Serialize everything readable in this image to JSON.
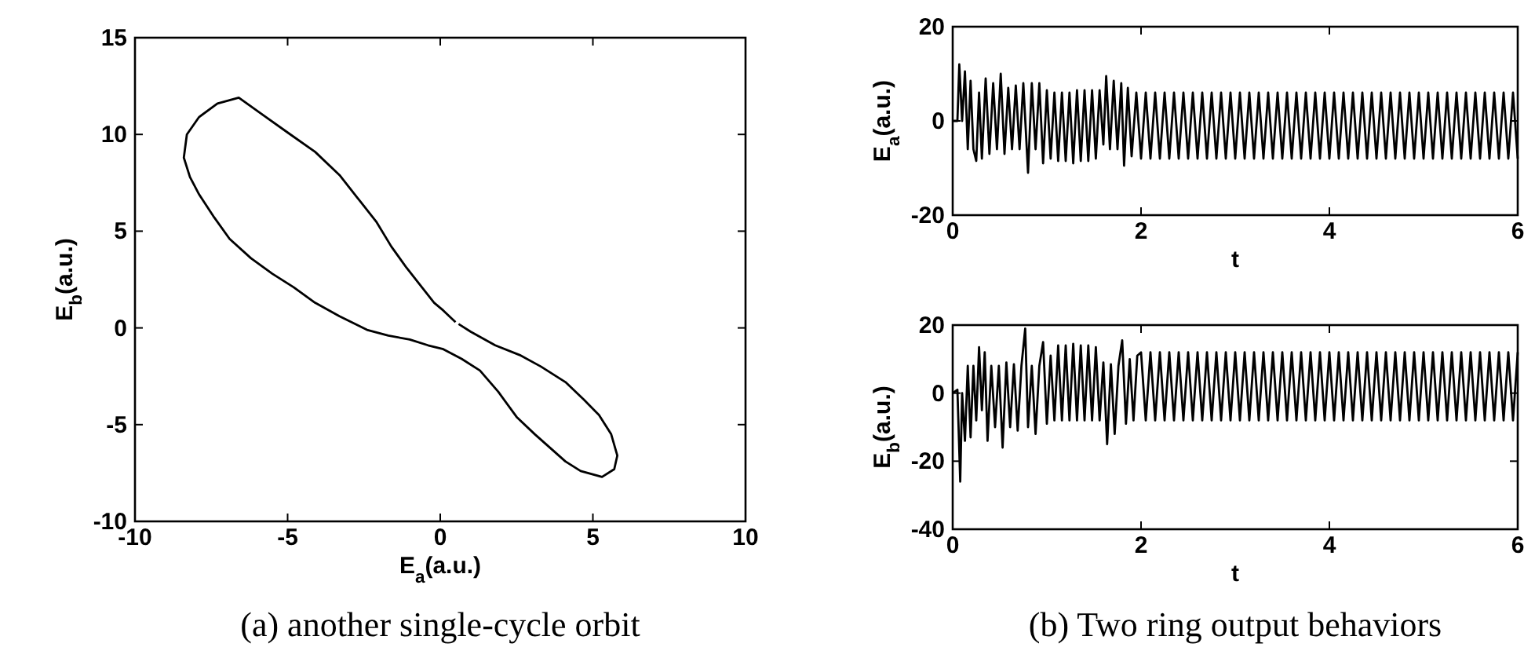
{
  "chart_data": [
    {
      "type": "line",
      "xlabel": "E$_{a}$(a.u.)",
      "ylabel": "E$_{b}$(a.u.)",
      "xlim": [
        -10,
        10
      ],
      "ylim": [
        -10,
        15
      ],
      "xticks": [
        -10,
        -5,
        0,
        5,
        10
      ],
      "yticks": [
        -10,
        -5,
        0,
        5,
        10,
        15
      ],
      "annotations": [
        "(a) another single-cycle orbit"
      ],
      "series": [
        {
          "color": "#000000",
          "x": [
            0.5,
            0.1,
            -0.2,
            -0.6,
            -1.1,
            -1.6,
            -2.1,
            -2.7,
            -3.3,
            -4.1,
            -5.0,
            -5.8,
            -6.6,
            -7.3,
            -7.9,
            -8.3,
            -8.4,
            -8.2,
            -7.9,
            -7.4,
            -6.9,
            -6.2,
            -5.5,
            -4.8,
            -4.1,
            -3.3,
            -2.4,
            -1.7,
            -1.0,
            -0.4,
            0.1,
            0.7,
            1.3,
            1.9,
            2.5,
            3.1,
            3.6,
            4.1,
            4.6,
            5.3,
            5.7,
            5.8,
            5.6,
            5.2,
            4.7,
            4.1,
            3.3,
            2.6,
            1.8,
            1.0,
            0.6
          ],
          "values": [
            0.3,
            0.9,
            1.3,
            2.1,
            3.1,
            4.2,
            5.5,
            6.7,
            7.9,
            9.1,
            10.1,
            11.0,
            11.9,
            11.6,
            10.9,
            10.0,
            8.8,
            7.8,
            6.9,
            5.7,
            4.6,
            3.6,
            2.8,
            2.1,
            1.3,
            0.6,
            -0.1,
            -0.4,
            -0.6,
            -0.9,
            -1.1,
            -1.6,
            -2.2,
            -3.3,
            -4.6,
            -5.5,
            -6.2,
            -6.9,
            -7.4,
            -7.7,
            -7.3,
            -6.6,
            -5.5,
            -4.5,
            -3.7,
            -2.8,
            -2.0,
            -1.4,
            -0.9,
            -0.2,
            0.2
          ]
        }
      ]
    },
    {
      "type": "line",
      "xlabel": "t",
      "ylabel": "E$_{a}$(a.u.)",
      "xlim": [
        0,
        6
      ],
      "ylim": [
        -20,
        20
      ],
      "xticks": [
        0,
        2,
        4,
        6
      ],
      "yticks": [
        -20,
        0,
        20
      ],
      "series": [
        {
          "color": "#000000",
          "x": [
            0,
            0.05,
            0.07,
            0.1,
            0.13,
            0.16,
            0.19,
            0.22,
            0.25,
            0.28,
            0.31,
            0.35,
            0.39,
            0.43,
            0.47,
            0.51,
            0.55,
            0.59,
            0.63,
            0.67,
            0.71,
            0.75,
            0.8,
            0.84,
            0.88,
            0.92,
            0.96,
            1.0,
            1.04,
            1.08,
            1.12,
            1.16,
            1.2,
            1.24,
            1.28,
            1.32,
            1.36,
            1.4,
            1.44,
            1.48,
            1.52,
            1.56,
            1.6,
            1.63,
            1.67,
            1.71,
            1.75,
            1.79,
            1.82,
            1.86,
            1.9,
            1.95,
            2,
            2.05,
            2.1,
            2.15,
            2.2,
            2.25,
            2.3,
            2.35,
            2.4,
            2.45,
            2.5,
            2.55,
            2.6,
            2.65,
            2.7,
            2.75,
            2.8,
            2.85,
            2.9,
            2.95,
            3,
            3.05,
            3.1,
            3.15,
            3.2,
            3.25,
            3.3,
            3.35,
            3.4,
            3.45,
            3.5,
            3.55,
            3.6,
            3.65,
            3.7,
            3.75,
            3.8,
            3.85,
            3.9,
            3.95,
            4,
            4.05,
            4.1,
            4.15,
            4.2,
            4.25,
            4.3,
            4.35,
            4.4,
            4.45,
            4.5,
            4.55,
            4.6,
            4.65,
            4.7,
            4.75,
            4.8,
            4.85,
            4.9,
            4.95,
            5,
            5.05,
            5.1,
            5.15,
            5.2,
            5.25,
            5.3,
            5.35,
            5.4,
            5.45,
            5.5,
            5.55,
            5.6,
            5.65,
            5.7,
            5.75,
            5.8,
            5.85,
            5.9,
            5.95,
            6
          ],
          "values": [
            0,
            0,
            12,
            0,
            10.5,
            -6,
            8.5,
            -6,
            -8.5,
            6,
            -8,
            9,
            -7,
            8,
            -6,
            10,
            -7,
            7,
            -6,
            7.5,
            -6,
            8,
            -11,
            8,
            -6,
            8,
            -9,
            6.5,
            -8,
            6,
            -8.5,
            6,
            -8.5,
            6,
            -9,
            6.5,
            -8.5,
            6.5,
            -8.5,
            6.5,
            -8,
            6.5,
            -5,
            9.5,
            -6,
            8.5,
            -6,
            8,
            -9.5,
            7,
            -7.5,
            6,
            -8,
            6,
            -8,
            6,
            -8,
            6,
            -8,
            6,
            -8,
            6,
            -8,
            6,
            -8,
            6,
            -8,
            6,
            -8,
            6,
            -8,
            6,
            -8,
            6,
            -8,
            6,
            -8,
            6,
            -8,
            6,
            -8,
            6,
            -8,
            6,
            -8,
            6,
            -8,
            6,
            -8,
            6,
            -8,
            6,
            -8,
            6,
            -8,
            6,
            -8,
            6,
            -8,
            6,
            -8,
            6,
            -8,
            6,
            -8,
            6,
            -8,
            6,
            -8,
            6,
            -8,
            6,
            -8,
            6,
            -8,
            6,
            -8,
            6,
            -8,
            6,
            -8,
            6,
            -8,
            6,
            -8,
            6,
            -8,
            6,
            -8,
            6,
            -8,
            6,
            -8
          ]
        }
      ]
    },
    {
      "type": "line",
      "xlabel": "t",
      "ylabel": "E$_{b}$(a.u.)",
      "xlim": [
        0,
        6
      ],
      "ylim": [
        -40,
        20
      ],
      "xticks": [
        0,
        2,
        4,
        6
      ],
      "yticks": [
        -40,
        -20,
        0,
        20
      ],
      "annotations": [
        "(b) Two ring output behaviors"
      ],
      "series": [
        {
          "color": "#000000",
          "x": [
            0,
            0.05,
            0.08,
            0.1,
            0.13,
            0.16,
            0.19,
            0.22,
            0.25,
            0.28,
            0.31,
            0.34,
            0.37,
            0.41,
            0.45,
            0.49,
            0.53,
            0.57,
            0.61,
            0.65,
            0.69,
            0.73,
            0.77,
            0.8,
            0.84,
            0.88,
            0.92,
            0.96,
            1.0,
            1.04,
            1.08,
            1.12,
            1.16,
            1.2,
            1.24,
            1.28,
            1.32,
            1.36,
            1.4,
            1.44,
            1.48,
            1.52,
            1.56,
            1.6,
            1.64,
            1.68,
            1.72,
            1.76,
            1.8,
            1.84,
            1.88,
            1.92,
            1.96,
            2,
            2.05,
            2.1,
            2.15,
            2.2,
            2.25,
            2.3,
            2.35,
            2.4,
            2.45,
            2.5,
            2.55,
            2.6,
            2.65,
            2.7,
            2.75,
            2.8,
            2.85,
            2.9,
            2.95,
            3,
            3.05,
            3.1,
            3.15,
            3.2,
            3.25,
            3.3,
            3.35,
            3.4,
            3.45,
            3.5,
            3.55,
            3.6,
            3.65,
            3.7,
            3.75,
            3.8,
            3.85,
            3.9,
            3.95,
            4,
            4.05,
            4.1,
            4.15,
            4.2,
            4.25,
            4.3,
            4.35,
            4.4,
            4.45,
            4.5,
            4.55,
            4.6,
            4.65,
            4.7,
            4.75,
            4.8,
            4.85,
            4.9,
            4.95,
            5,
            5.05,
            5.1,
            5.15,
            5.2,
            5.25,
            5.3,
            5.35,
            5.4,
            5.45,
            5.5,
            5.55,
            5.6,
            5.65,
            5.7,
            5.75,
            5.8,
            5.85,
            5.9,
            5.95,
            6
          ],
          "values": [
            0,
            1,
            -26,
            0,
            -14,
            8,
            -13,
            8,
            -8,
            13.5,
            -5,
            12,
            -14,
            8,
            -10,
            8,
            -16,
            9,
            -10,
            8.5,
            -11,
            8,
            19,
            -10,
            8,
            -12,
            8,
            15,
            -9,
            11,
            -8,
            14,
            -8,
            14,
            -8,
            14.5,
            -8,
            14,
            -8,
            14,
            -8,
            13.5,
            -8,
            9,
            -15,
            8.5,
            -12,
            8,
            15.5,
            -9,
            10,
            -8,
            11,
            12,
            -8,
            12,
            -8,
            12,
            -8,
            12,
            -8,
            12,
            -8,
            12,
            -8,
            12,
            -8,
            12,
            -8,
            12,
            -8,
            12,
            -8,
            12,
            -8,
            12,
            -8,
            12,
            -8,
            12,
            -8,
            12,
            -8,
            12,
            -8,
            12,
            -8,
            12,
            -8,
            12,
            -8,
            12,
            -8,
            12,
            -8,
            12,
            -8,
            12,
            -8,
            12,
            -8,
            12,
            -8,
            12,
            -8,
            12,
            -8,
            12,
            -8,
            12,
            -8,
            12,
            -8,
            12,
            -8,
            12,
            -8,
            12,
            -8,
            12,
            -8,
            12,
            -8,
            12,
            -8,
            12,
            -8,
            12,
            -8,
            12,
            -8,
            12,
            -8,
            12
          ]
        }
      ]
    }
  ]
}
